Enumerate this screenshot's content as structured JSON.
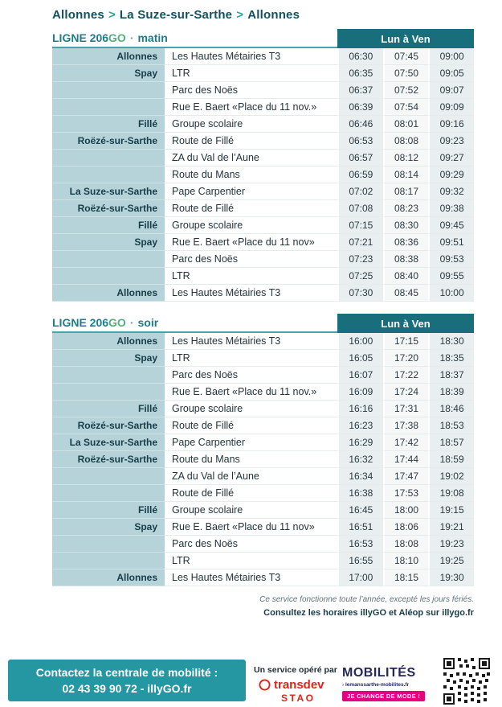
{
  "breadcrumb": {
    "parts": [
      "Allonnes",
      "La Suze-sur-Sarthe",
      "Allonnes"
    ],
    "separator": ">"
  },
  "tables": [
    {
      "title_main": "LIGNE 206",
      "title_suffix": "GO",
      "title_dot": "·",
      "title_period": "matin",
      "days_label": "Lun à Ven",
      "rows": [
        {
          "commune": "Allonnes",
          "stop": "Les Hautes Métairies T3",
          "times": [
            "06:30",
            "07:45",
            "09:00"
          ]
        },
        {
          "commune": "Spay",
          "stop": "LTR",
          "times": [
            "06:35",
            "07:50",
            "09:05"
          ]
        },
        {
          "commune": "",
          "stop": "Parc des Noës",
          "times": [
            "06:37",
            "07:52",
            "09:07"
          ]
        },
        {
          "commune": "",
          "stop": "Rue E. Baert «Place du 11 nov.»",
          "times": [
            "06:39",
            "07:54",
            "09:09"
          ]
        },
        {
          "commune": "Fillé",
          "stop": "Groupe scolaire",
          "times": [
            "06:46",
            "08:01",
            "09:16"
          ]
        },
        {
          "commune": "Roëzé-sur-Sarthe",
          "stop": "Route de Fillé",
          "times": [
            "06:53",
            "08:08",
            "09:23"
          ]
        },
        {
          "commune": "",
          "stop": "ZA du Val de l’Aune",
          "times": [
            "06:57",
            "08:12",
            "09:27"
          ]
        },
        {
          "commune": "",
          "stop": "Route du Mans",
          "times": [
            "06:59",
            "08:14",
            "09:29"
          ]
        },
        {
          "commune": "La Suze-sur-Sarthe",
          "stop": "Pape Carpentier",
          "times": [
            "07:02",
            "08:17",
            "09:32"
          ]
        },
        {
          "commune": "Roëzé-sur-Sarthe",
          "stop": "Route de Fillé",
          "times": [
            "07:08",
            "08:23",
            "09:38"
          ]
        },
        {
          "commune": "Fillé",
          "stop": "Groupe scolaire",
          "times": [
            "07:15",
            "08:30",
            "09:45"
          ]
        },
        {
          "commune": "Spay",
          "stop": "Rue E. Baert «Place du 11 nov»",
          "times": [
            "07:21",
            "08:36",
            "09:51"
          ]
        },
        {
          "commune": "",
          "stop": "Parc des Noës",
          "times": [
            "07:23",
            "08:38",
            "09:53"
          ]
        },
        {
          "commune": "",
          "stop": "LTR",
          "times": [
            "07:25",
            "08:40",
            "09:55"
          ]
        },
        {
          "commune": "Allonnes",
          "stop": "Les Hautes Métairies T3",
          "times": [
            "07:30",
            "08:45",
            "10:00"
          ]
        }
      ]
    },
    {
      "title_main": "LIGNE 206",
      "title_suffix": "GO",
      "title_dot": "·",
      "title_period": "soir",
      "days_label": "Lun à Ven",
      "rows": [
        {
          "commune": "Allonnes",
          "stop": "Les Hautes Métairies T3",
          "times": [
            "16:00",
            "17:15",
            "18:30"
          ]
        },
        {
          "commune": "Spay",
          "stop": "LTR",
          "times": [
            "16:05",
            "17:20",
            "18:35"
          ]
        },
        {
          "commune": "",
          "stop": "Parc des Noës",
          "times": [
            "16:07",
            "17:22",
            "18:37"
          ]
        },
        {
          "commune": "",
          "stop": "Rue E. Baert «Place du 11 nov.»",
          "times": [
            "16:09",
            "17:24",
            "18:39"
          ]
        },
        {
          "commune": "Fillé",
          "stop": "Groupe scolaire",
          "times": [
            "16:16",
            "17:31",
            "18:46"
          ]
        },
        {
          "commune": "Roëzé-sur-Sarthe",
          "stop": "Route de Fillé",
          "times": [
            "16:23",
            "17:38",
            "18:53"
          ]
        },
        {
          "commune": "La Suze-sur-Sarthe",
          "stop": "Pape Carpentier",
          "times": [
            "16:29",
            "17:42",
            "18:57"
          ]
        },
        {
          "commune": "Roëzé-sur-Sarthe",
          "stop": "Route du Mans",
          "times": [
            "16:32",
            "17:44",
            "18:59"
          ]
        },
        {
          "commune": "",
          "stop": "ZA du Val de l’Aune",
          "times": [
            "16:34",
            "17:47",
            "19:02"
          ]
        },
        {
          "commune": "",
          "stop": "Route de Fillé",
          "times": [
            "16:38",
            "17:53",
            "19:08"
          ]
        },
        {
          "commune": "Fillé",
          "stop": "Groupe scolaire",
          "times": [
            "16:45",
            "18:00",
            "19:15"
          ]
        },
        {
          "commune": "Spay",
          "stop": "Rue E. Baert «Place du 11 nov»",
          "times": [
            "16:51",
            "18:06",
            "19:21"
          ]
        },
        {
          "commune": "",
          "stop": "Parc des Noës",
          "times": [
            "16:53",
            "18:08",
            "19:23"
          ]
        },
        {
          "commune": "",
          "stop": "LTR",
          "times": [
            "16:55",
            "18:10",
            "19:25"
          ]
        },
        {
          "commune": "Allonnes",
          "stop": "Les Hautes Métairies T3",
          "times": [
            "17:00",
            "18:15",
            "19:30"
          ]
        }
      ]
    }
  ],
  "notes": {
    "service": "Ce service fonctionne toute l’année, excepté les jours fériés.",
    "consult": "Consultez les horaires illyGO et Aléop sur illygo.fr"
  },
  "contact_box": {
    "line1": "Contactez la centrale de mobilité :",
    "line2": "02 43 39 90 72 - illyGO.fr"
  },
  "operator": {
    "label": "Un service opéré par",
    "transdev": "transdev",
    "stao": "STAO",
    "mobilites": "MOBILITÉS",
    "website": "lemanssarthe-mobilites.fr",
    "slogan": "JE CHANGE DE MODE !"
  },
  "colors": {
    "teal_dark": "#196e7c",
    "teal_box": "#2497a3",
    "commune_bg": "#b5d3d8",
    "accent_green": "#2ba48e",
    "transdev_red": "#e2231a",
    "mobilites_navy": "#232858",
    "slogan_pink": "#e5007d"
  }
}
